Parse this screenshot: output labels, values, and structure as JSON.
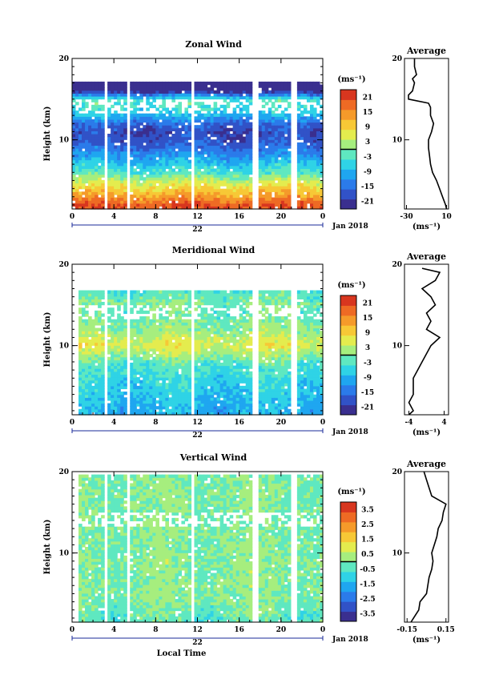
{
  "colormap": [
    "#3a2f8f",
    "#3152c7",
    "#2b7bea",
    "#1fa6f0",
    "#2fd3e6",
    "#5fe8c0",
    "#a6ee7e",
    "#e4ec4e",
    "#f7c836",
    "#f59a2a",
    "#ee6a24",
    "#d8361f"
  ],
  "chart_data": [
    {
      "type": "heatmap",
      "title": "Zonal Wind",
      "ylabel": "Height (km)",
      "x_ticks": [
        "0",
        "4",
        "8",
        "12",
        "16",
        "20",
        "0"
      ],
      "day_label": "22",
      "month_label": "Jan 2018",
      "y_ticks": [
        "10",
        "20"
      ],
      "ylim": [
        1.5,
        20
      ],
      "xlim": [
        0,
        24
      ],
      "colorbar_unit": "(ms⁻¹)",
      "colorbar_ticks": [
        "-21",
        "-15",
        "-9",
        "-3",
        "3",
        "9",
        "15",
        "21"
      ],
      "color_range": [
        -24,
        24
      ],
      "gaps_hours": [
        3.3,
        5.4,
        11.5,
        17.6,
        21.2
      ],
      "profile_height_km": [
        2,
        3,
        4,
        5,
        6,
        7,
        8,
        9,
        10,
        11,
        12,
        13,
        14,
        15,
        16,
        17,
        18,
        19
      ],
      "field_kernel_ms": [
        20,
        14,
        9,
        4,
        -3,
        -7,
        -11,
        -15,
        -18,
        -19,
        -16,
        -9,
        -4,
        -3,
        -22,
        -28,
        -24,
        -23
      ],
      "top_km": 17,
      "profile": {
        "title": "Average",
        "xlabel": "(ms⁻¹)",
        "x_ticks": [
          "-30",
          "10"
        ],
        "xlim": [
          -32,
          12
        ],
        "height_km": [
          1.5,
          2,
          3,
          4,
          5,
          6,
          7,
          8,
          9,
          10,
          11,
          12,
          13,
          14,
          14.5,
          15,
          15.5,
          16,
          17,
          17.5,
          18,
          19,
          20
        ],
        "values_ms": [
          10,
          9,
          6,
          3,
          0,
          -4,
          -6,
          -7,
          -8,
          -8,
          -5,
          -3,
          -6,
          -6,
          -8,
          -28,
          -28,
          -24,
          -22,
          -24,
          -20,
          -22,
          -22
        ]
      }
    },
    {
      "type": "heatmap",
      "title": "Meridional Wind",
      "ylabel": "Height (km)",
      "x_ticks": [
        "0",
        "4",
        "8",
        "12",
        "16",
        "20",
        "0"
      ],
      "day_label": "22",
      "month_label": "Jan 2018",
      "y_ticks": [
        "10",
        "20"
      ],
      "ylim": [
        1.5,
        20
      ],
      "xlim": [
        0,
        24
      ],
      "colorbar_unit": "(ms⁻¹)",
      "colorbar_ticks": [
        "-21",
        "-15",
        "-9",
        "-3",
        "3",
        "9",
        "15",
        "21"
      ],
      "color_range": [
        -24,
        24
      ],
      "gaps_hours": [
        0.3,
        3.3,
        5.4,
        11.5,
        17.6,
        21.2
      ],
      "profile_height_km": [
        2,
        3,
        4,
        5,
        6,
        7,
        8,
        9,
        10,
        11,
        12,
        13,
        14,
        15,
        16,
        17,
        18
      ],
      "field_kernel_ms": [
        -9,
        -8,
        -7,
        -6,
        -5,
        -4,
        -2,
        2,
        6,
        4,
        1,
        0,
        -2,
        0,
        -1,
        -4,
        -6
      ],
      "top_km": 16.8,
      "profile": {
        "title": "Average",
        "xlabel": "(ms⁻¹)",
        "x_ticks": [
          "-4",
          "4"
        ],
        "xlim": [
          -5,
          5
        ],
        "height_km": [
          1.5,
          2,
          3,
          4,
          5,
          6,
          7,
          8,
          9,
          10,
          11,
          12,
          13,
          14,
          15,
          16,
          17,
          18,
          19,
          19.5
        ],
        "values_ms": [
          -4,
          -3,
          -4,
          -3,
          -3,
          -3,
          -2,
          -1,
          0,
          1,
          3,
          0,
          1,
          0,
          2,
          1,
          -1,
          2,
          3,
          -1
        ]
      }
    },
    {
      "type": "heatmap",
      "title": "Vertical Wind",
      "ylabel": "Height (km)",
      "xlabel": "Local Time",
      "x_ticks": [
        "0",
        "4",
        "8",
        "12",
        "16",
        "20",
        "0"
      ],
      "day_label": "22",
      "month_label": "Jan 2018",
      "y_ticks": [
        "10",
        "20"
      ],
      "ylim": [
        1.5,
        20
      ],
      "xlim": [
        0,
        24
      ],
      "colorbar_unit": "(ms⁻¹)",
      "colorbar_ticks": [
        "-3.5",
        "-2.5",
        "-1.5",
        "-0.5",
        "0.5",
        "1.5",
        "2.5",
        "3.5"
      ],
      "color_range": [
        -4,
        4
      ],
      "gaps_hours": [
        0.3,
        3.3,
        5.4,
        11.5,
        17.6,
        21.2
      ],
      "profile_height_km": [
        2,
        3,
        4,
        5,
        6,
        7,
        8,
        9,
        10,
        11,
        12,
        13,
        14,
        15,
        16,
        17,
        18,
        19
      ],
      "field_kernel_ms": [
        -0.3,
        -0.2,
        0,
        0.1,
        0.1,
        0,
        0.1,
        0.1,
        0,
        0,
        0,
        0,
        0,
        0,
        0,
        0,
        0,
        0
      ],
      "top_km": 19.5,
      "profile": {
        "title": "Average",
        "xlabel": "(ms⁻¹)",
        "x_ticks": [
          "-0.15",
          "0.15"
        ],
        "xlim": [
          -0.17,
          0.17
        ],
        "height_km": [
          1.5,
          2,
          3,
          4,
          5,
          6,
          7,
          8,
          9,
          10,
          11,
          12,
          13,
          14,
          15,
          16,
          17,
          18,
          19,
          20
        ],
        "values_ms": [
          -0.12,
          -0.1,
          -0.06,
          -0.05,
          0.0,
          0.01,
          0.02,
          0.04,
          0.05,
          0.04,
          0.06,
          0.08,
          0.09,
          0.12,
          0.13,
          0.15,
          0.04,
          0.02,
          0.0,
          -0.02
        ]
      }
    }
  ]
}
